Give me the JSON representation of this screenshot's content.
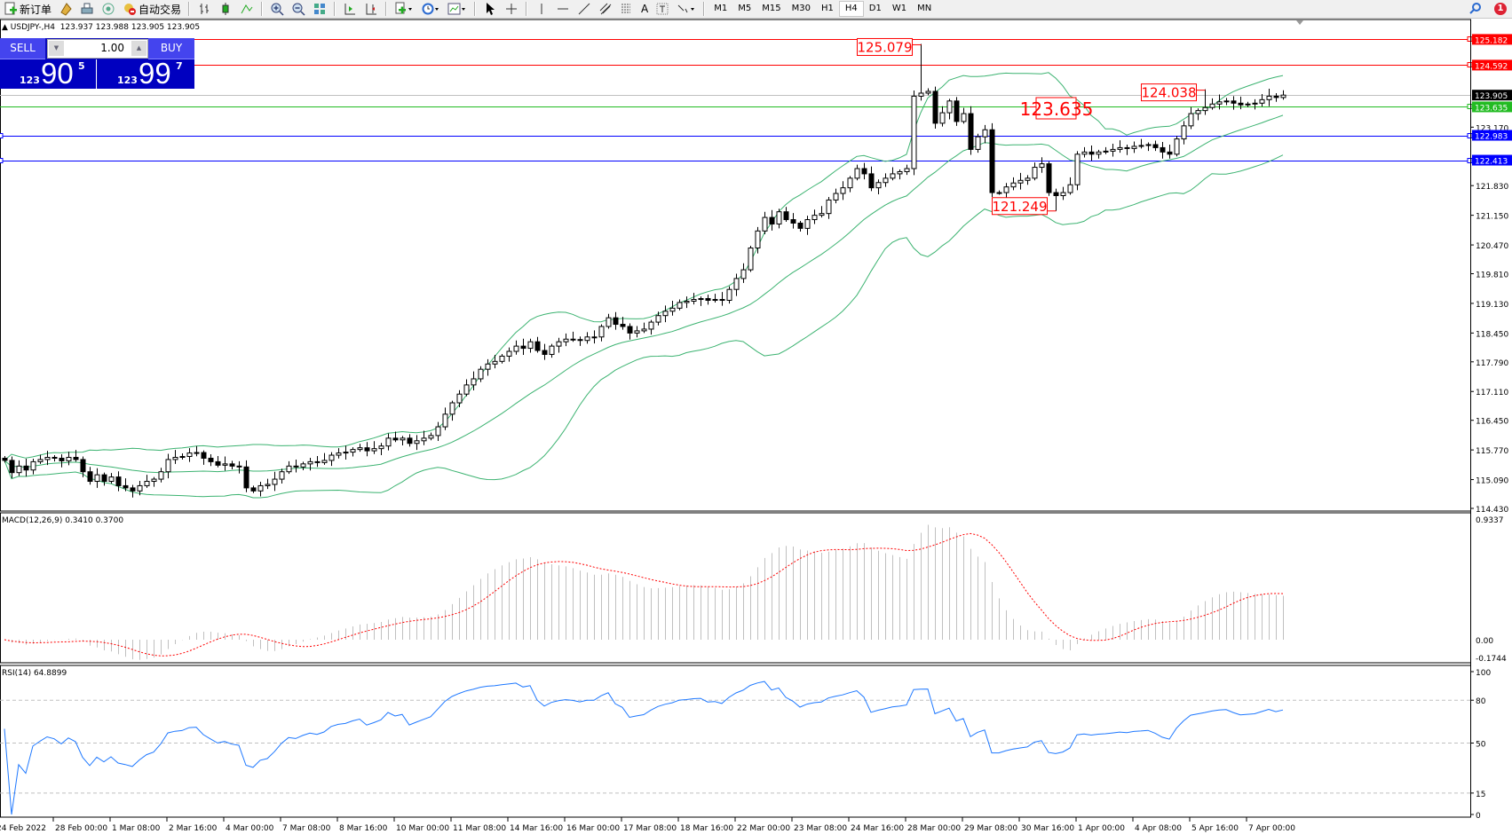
{
  "toolbar": {
    "new_order": "新订单",
    "auto_trading": "自动交易",
    "timeframes": [
      "M1",
      "M5",
      "M15",
      "M30",
      "H1",
      "H4",
      "D1",
      "W1",
      "MN"
    ],
    "active_timeframe": "H4",
    "notification_count": "1"
  },
  "chart": {
    "title": "USDJPY-,H4",
    "ohlc": "123.937 123.988 123.905 123.905"
  },
  "trade_panel": {
    "sell_label": "SELL",
    "buy_label": "BUY",
    "lot": "1.00",
    "sell_price": {
      "prefix": "123",
      "big": "90",
      "sup": "5"
    },
    "buy_price": {
      "prefix": "123",
      "big": "99",
      "sup": "7"
    }
  },
  "chart_data": {
    "type": "candlestick",
    "closes": [
      115.53,
      115.25,
      115.4,
      115.31,
      115.5,
      115.55,
      115.6,
      115.58,
      115.52,
      115.6,
      115.55,
      115.27,
      115.05,
      115.2,
      115.05,
      115.15,
      114.95,
      114.9,
      114.83,
      114.95,
      115.05,
      115.1,
      115.27,
      115.55,
      115.6,
      115.62,
      115.7,
      115.71,
      115.58,
      115.5,
      115.42,
      115.45,
      115.4,
      115.38,
      114.9,
      114.83,
      114.95,
      114.98,
      115.1,
      115.27,
      115.4,
      115.38,
      115.45,
      115.5,
      115.48,
      115.53,
      115.65,
      115.7,
      115.72,
      115.78,
      115.82,
      115.75,
      115.8,
      115.86,
      116.04,
      116.0,
      116.04,
      115.92,
      115.98,
      116.04,
      116.1,
      116.3,
      116.59,
      116.85,
      117.05,
      117.26,
      117.4,
      117.62,
      117.74,
      117.8,
      117.92,
      118.03,
      118.15,
      118.1,
      118.25,
      118.05,
      117.96,
      118.15,
      118.25,
      118.31,
      118.3,
      118.28,
      118.36,
      118.36,
      118.6,
      118.8,
      118.65,
      118.6,
      118.45,
      118.5,
      118.54,
      118.7,
      118.85,
      118.95,
      119.02,
      119.15,
      119.18,
      119.22,
      119.24,
      119.2,
      119.22,
      119.2,
      119.45,
      119.7,
      119.9,
      120.4,
      120.79,
      121.1,
      120.95,
      121.23,
      121.05,
      120.97,
      120.85,
      121.05,
      121.15,
      121.19,
      121.5,
      121.65,
      121.78,
      122.0,
      122.22,
      122.1,
      121.78,
      121.9,
      122.0,
      122.1,
      122.15,
      122.22,
      123.88,
      123.95,
      123.99,
      123.26,
      123.5,
      123.77,
      123.3,
      123.48,
      122.66,
      122.95,
      123.11,
      121.67,
      121.67,
      121.8,
      121.89,
      121.95,
      122.0,
      122.25,
      122.33,
      121.67,
      121.6,
      121.67,
      121.85,
      122.55,
      122.6,
      122.55,
      122.6,
      122.62,
      122.66,
      122.7,
      122.68,
      122.73,
      122.75,
      122.77,
      122.7,
      122.6,
      122.55,
      122.9,
      123.2,
      123.48,
      123.55,
      123.62,
      123.7,
      123.75,
      123.77,
      123.72,
      123.68,
      123.7,
      123.72,
      123.8,
      123.88,
      123.85,
      123.905
    ],
    "marked_extremes": [
      {
        "index": 129,
        "high": 125.079,
        "label": "125.079"
      },
      {
        "index": 148,
        "low": 121.249,
        "label": "121.249"
      },
      {
        "index": 169,
        "high": 124.038,
        "label": "124.038"
      }
    ],
    "price_annotation": {
      "label": "123.635"
    },
    "horizontal_lines": [
      {
        "price": 125.182,
        "label": "125.182",
        "color": "#ff0000",
        "style": "solid"
      },
      {
        "price": 124.592,
        "label": "124.592",
        "color": "#ff0000",
        "style": "solid"
      },
      {
        "price": 123.905,
        "label": "123.905",
        "color": "#000000",
        "line_color": "#c0c0c0",
        "style": "bid"
      },
      {
        "price": 123.635,
        "label": "123.635",
        "color": "#22bb22",
        "style": "solid"
      },
      {
        "price": 122.983,
        "label": "122.983",
        "color": "#0000ff",
        "style": "solid"
      },
      {
        "price": 122.413,
        "label": "122.413",
        "color": "#0000ff",
        "style": "solid"
      }
    ],
    "price_ticks": [
      "123.170",
      "121.830",
      "121.150",
      "120.470",
      "119.810",
      "119.130",
      "118.450",
      "117.790",
      "117.110",
      "116.450",
      "115.770",
      "115.090",
      "114.430"
    ],
    "time_labels": [
      "24 Feb 2022",
      "28 Feb 00:00",
      "1 Mar 08:00",
      "2 Mar 16:00",
      "4 Mar 00:00",
      "7 Mar 08:00",
      "8 Mar 16:00",
      "10 Mar 00:00",
      "11 Mar 08:00",
      "14 Mar 16:00",
      "16 Mar 00:00",
      "17 Mar 08:00",
      "18 Mar 16:00",
      "22 Mar 00:00",
      "23 Mar 08:00",
      "24 Mar 16:00",
      "28 Mar 00:00",
      "29 Mar 08:00",
      "30 Mar 16:00",
      "1 Apr 00:00",
      "4 Apr 08:00",
      "5 Apr 16:00",
      "7 Apr 00:00"
    ],
    "ylim": [
      114.43,
      125.182
    ],
    "colors": {
      "bull_fill": "#ffffff",
      "bear_fill": "#000000",
      "candle_line": "#000000",
      "bands": "#3cb371"
    },
    "indicators": {
      "bollinger": {
        "period": 20,
        "deviation": 2
      },
      "macd": {
        "label": "MACD(12,26,9) 0.3410 0.3700",
        "fast": 12,
        "slow": 26,
        "signal": 9,
        "ylim": [
          -0.1744,
          0.9337
        ],
        "ticks": [
          "0.9337",
          "0.00",
          "-0.1744"
        ],
        "histogram_color": "#c0c0c0",
        "signal_color": "#ff0000"
      },
      "rsi": {
        "label": "RSI(14) 64.8899",
        "period": 14,
        "ylim": [
          0,
          100
        ],
        "ticks": [
          "100",
          "80",
          "50",
          "15",
          "0"
        ],
        "levels": [
          80,
          50,
          15
        ],
        "color": "#1e78ff"
      }
    }
  }
}
